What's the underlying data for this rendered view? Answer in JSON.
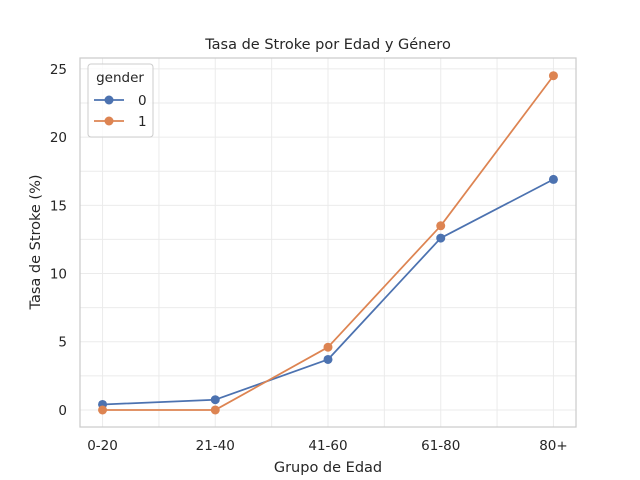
{
  "chart_data": {
    "type": "line",
    "title": "Tasa de Stroke por Edad y Género",
    "xlabel": "Grupo de Edad",
    "ylabel": "Tasa de Stroke (%)",
    "categories": [
      "0-20",
      "21-40",
      "41-60",
      "61-80",
      "80+"
    ],
    "ylim": [
      -1.25,
      25.8
    ],
    "yticks": [
      0,
      5,
      10,
      15,
      20,
      25
    ],
    "grid": true,
    "legend": {
      "title": "gender",
      "placement": "top-left"
    },
    "series": [
      {
        "name": "0",
        "color": "#4c72b0",
        "values": [
          0.4,
          0.75,
          3.7,
          12.6,
          16.9
        ]
      },
      {
        "name": "1",
        "color": "#dd8452",
        "values": [
          0.0,
          0.0,
          4.6,
          13.5,
          24.5
        ]
      }
    ]
  }
}
